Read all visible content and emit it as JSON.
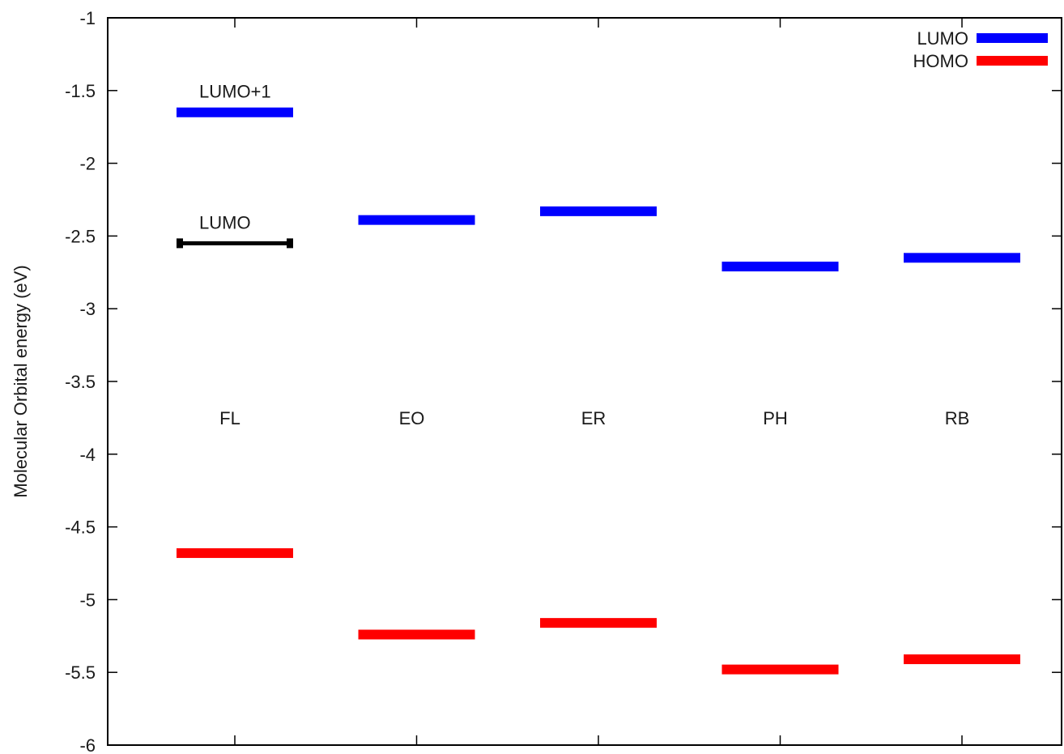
{
  "chart_data": {
    "type": "bar",
    "title": "",
    "ylabel": "Molecular Orbital energy (eV)",
    "xlabel": "",
    "ylim": [
      -6,
      -1
    ],
    "yticks": [
      -1,
      -1.5,
      -2,
      -2.5,
      -3,
      -3.5,
      -4,
      -4.5,
      -5,
      -5.5,
      -6
    ],
    "yticks_labels": [
      "-1",
      "-1.5",
      "-2",
      "-2.5",
      "-3",
      "-3.5",
      "-4",
      "-4.5",
      "-5",
      "-5.5",
      "-6"
    ],
    "categories": [
      "FL",
      "EO",
      "ER",
      "PH",
      "RB"
    ],
    "category_label_value": -3.75,
    "grid": false,
    "legend_position": "top-right",
    "series": [
      {
        "name": "LUMO",
        "color": "#0000ff",
        "values": [
          -1.65,
          -2.39,
          -2.33,
          -2.71,
          -2.65
        ]
      },
      {
        "name": "HOMO",
        "color": "#ff0000",
        "values": [
          -4.68,
          -5.24,
          -5.16,
          -5.48,
          -5.41
        ]
      }
    ],
    "extra_levels": [
      {
        "category": "FL",
        "value": -2.55,
        "color": "#000000",
        "label": "LUMO"
      }
    ],
    "annotations": [
      {
        "category": "FL",
        "value": -1.65,
        "text": "LUMO+1"
      }
    ]
  }
}
